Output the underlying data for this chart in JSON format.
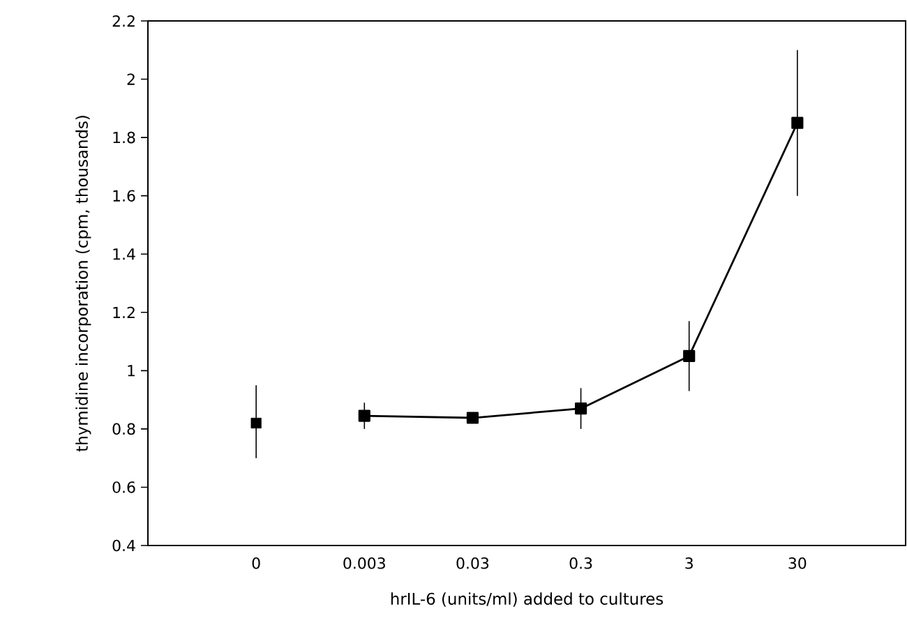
{
  "chart_data": {
    "type": "line",
    "xlabel": "hrIL-6 (units/ml) added to cultures",
    "ylabel": "thymidine incorporation (cpm, thousands)",
    "categories": [
      "0",
      "0.003",
      "0.03",
      "0.3",
      "3",
      "30"
    ],
    "ylim": [
      0.4,
      2.2
    ],
    "yticks": [
      0.4,
      0.6,
      0.8,
      1,
      1.2,
      1.4,
      1.6,
      1.8,
      2,
      2.2
    ],
    "marker": "square",
    "line_style": "solid",
    "series": [
      {
        "type": "scatter",
        "color": "#000000",
        "values": [
          0.82,
          null,
          null,
          null,
          null,
          null
        ],
        "errors": [
          [
            0.7,
            0.95
          ],
          null,
          null,
          null,
          null,
          null
        ]
      },
      {
        "color": "#000000",
        "values": [
          null,
          0.845,
          0.838,
          0.87,
          1.05,
          1.85
        ],
        "errors": [
          null,
          [
            0.8,
            0.89
          ],
          [
            0.825,
            0.85
          ],
          [
            0.8,
            0.94
          ],
          [
            0.93,
            1.17
          ],
          [
            1.6,
            2.1
          ]
        ]
      }
    ]
  }
}
